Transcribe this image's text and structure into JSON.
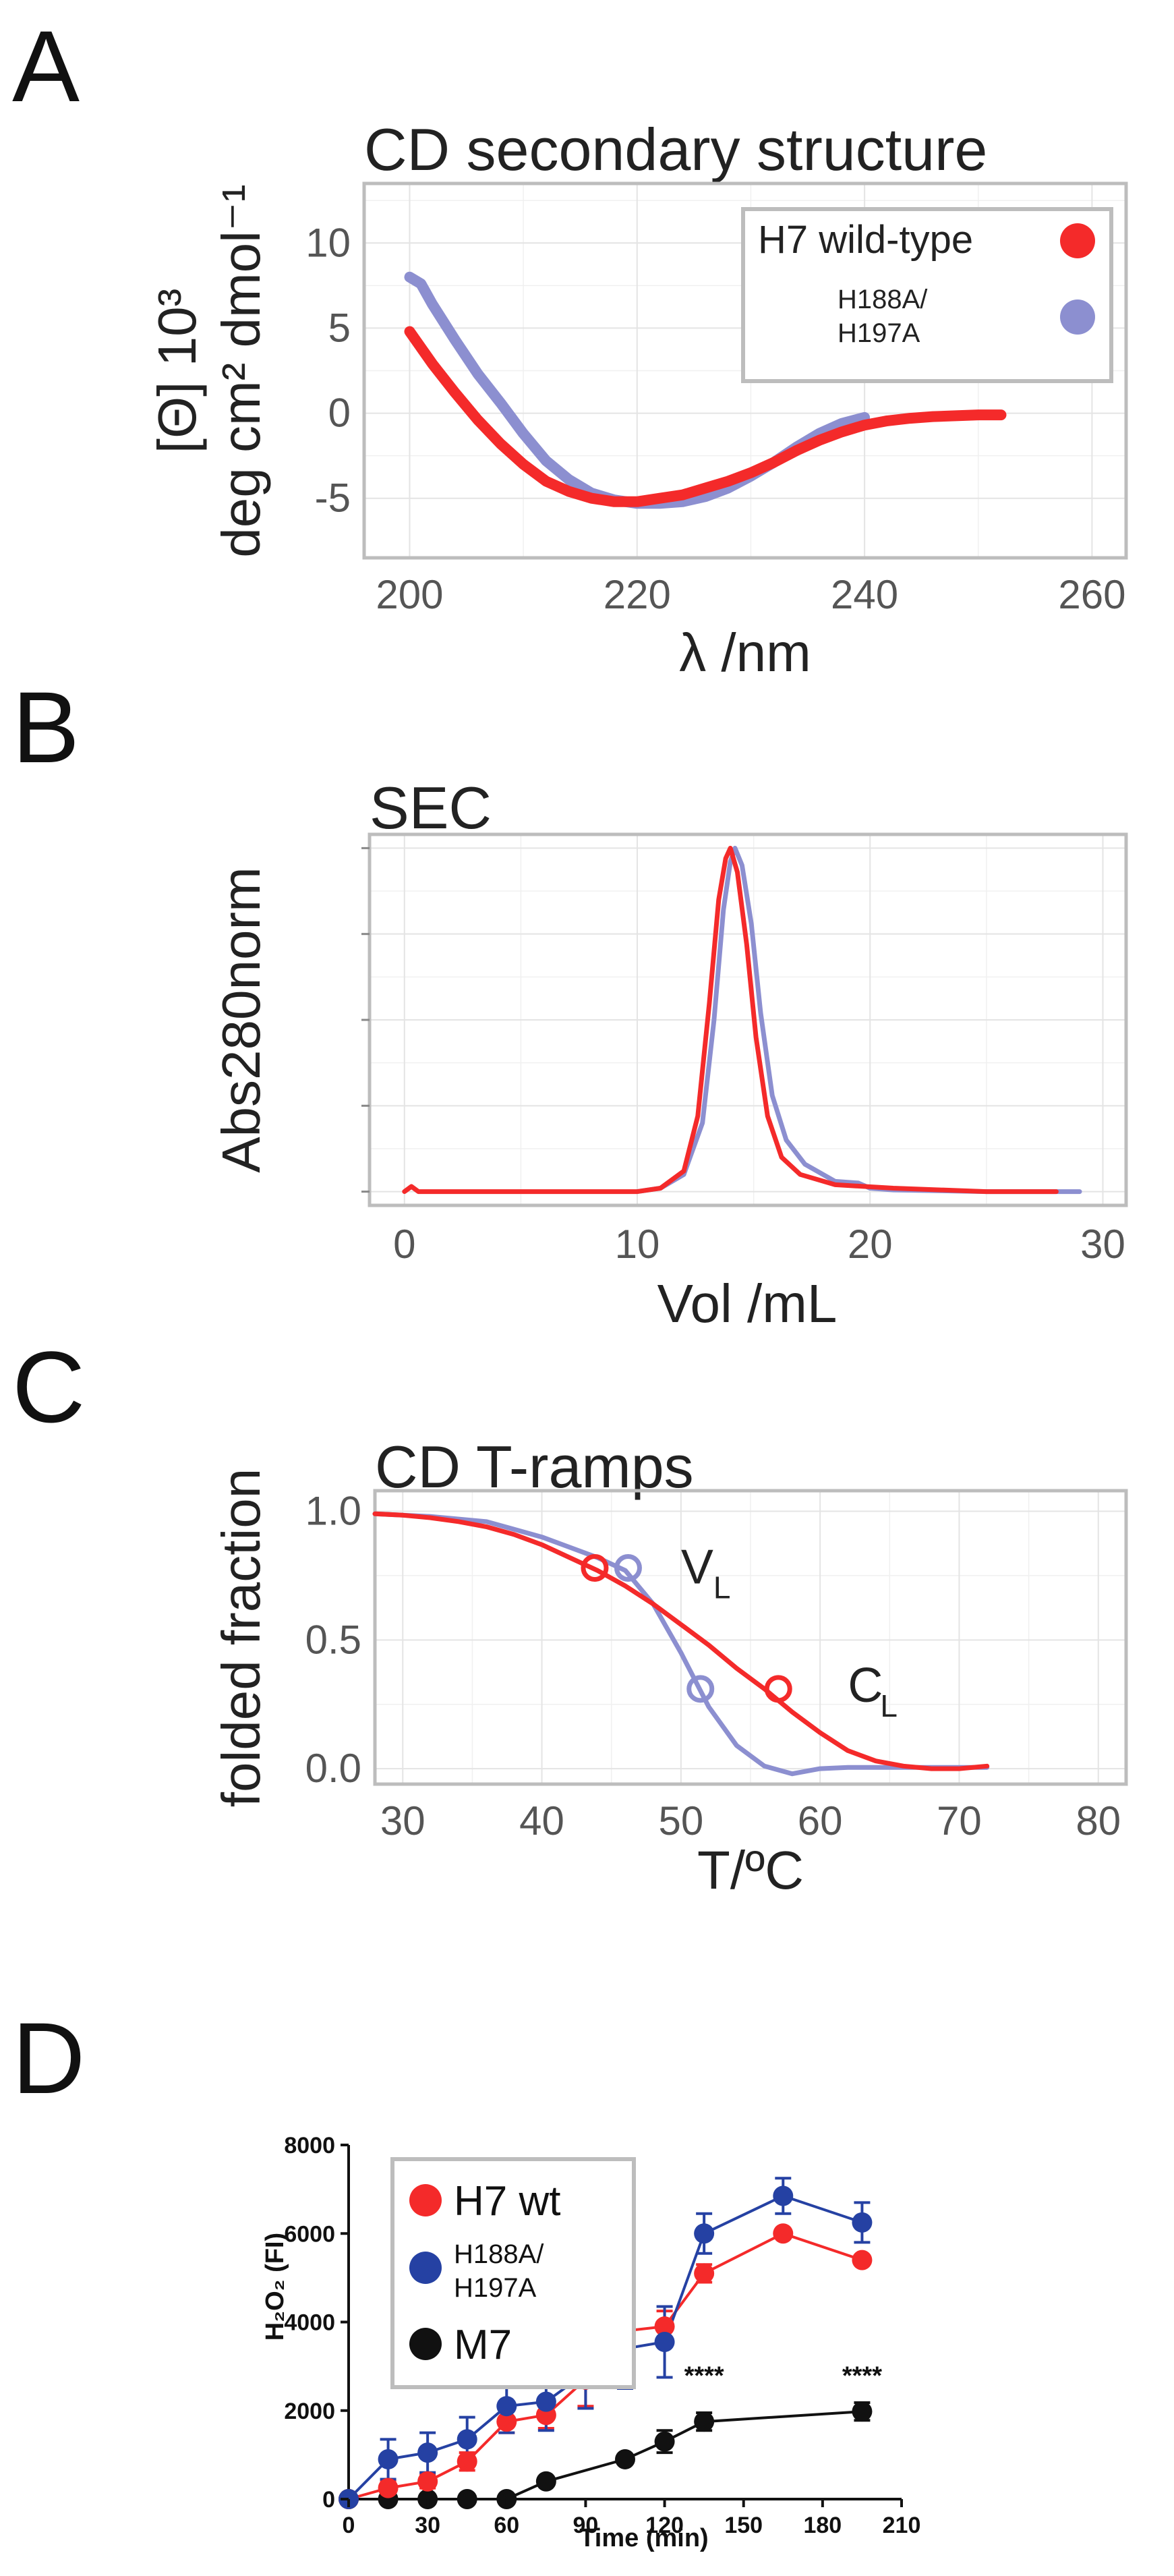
{
  "panels": {
    "a": "A",
    "b": "B",
    "c": "C",
    "d": "D"
  },
  "chart_data": [
    {
      "type": "line",
      "title": "CD secondary structure",
      "xlabel": "λ /nm",
      "ylabel_line1": "[Θ] 10³",
      "ylabel_line2": "deg cm² dmol⁻¹",
      "xlim": [
        196,
        263
      ],
      "ylim": [
        -8.5,
        13.5
      ],
      "xticks": [
        200,
        220,
        240,
        260
      ],
      "yticks": [
        -5,
        0,
        5,
        10
      ],
      "legend": {
        "placement": "top-right",
        "entries": [
          {
            "text": "H7 wild-type",
            "color": "#f42a2a"
          },
          {
            "text_line1": "H188A/",
            "text_line2": "H197A",
            "color": "#8c8fd0"
          }
        ]
      },
      "series": [
        {
          "name": "H7 wild-type",
          "color": "#f42a2a",
          "x": [
            200,
            202,
            204,
            206,
            208,
            210,
            212,
            214,
            216,
            218,
            220,
            222,
            224,
            226,
            228,
            230,
            232,
            234,
            236,
            238,
            240,
            242,
            244,
            246,
            248,
            250,
            252
          ],
          "y": [
            4.8,
            2.9,
            1.2,
            -0.4,
            -1.8,
            -3.0,
            -4.0,
            -4.6,
            -5.0,
            -5.2,
            -5.2,
            -5.0,
            -4.8,
            -4.4,
            -4.0,
            -3.5,
            -2.9,
            -2.2,
            -1.6,
            -1.1,
            -0.7,
            -0.45,
            -0.3,
            -0.2,
            -0.15,
            -0.1,
            -0.1
          ]
        },
        {
          "name": "H188A/H197A",
          "color": "#8c8fd0",
          "x": [
            200,
            201,
            202,
            204,
            206,
            208,
            210,
            212,
            214,
            216,
            218,
            220,
            222,
            224,
            226,
            228,
            230,
            232,
            234,
            236,
            238,
            240
          ],
          "y": [
            8.0,
            7.6,
            6.4,
            4.3,
            2.3,
            0.6,
            -1.2,
            -2.8,
            -3.9,
            -4.7,
            -5.1,
            -5.3,
            -5.3,
            -5.2,
            -4.9,
            -4.4,
            -3.7,
            -2.9,
            -2.0,
            -1.2,
            -0.6,
            -0.25
          ]
        }
      ]
    },
    {
      "type": "line",
      "title": "SEC",
      "xlabel": "Vol /mL",
      "ylabel": "Abs280norm",
      "xlim": [
        -1.5,
        31
      ],
      "ylim": [
        -0.04,
        1.04
      ],
      "xticks": [
        0,
        10,
        20,
        30
      ],
      "series": [
        {
          "name": "H7 wild-type",
          "color": "#f42a2a",
          "x": [
            0,
            0.3,
            0.6,
            2,
            8,
            10,
            11,
            12,
            12.6,
            13.1,
            13.5,
            13.8,
            14.0,
            14.3,
            14.7,
            15.1,
            15.6,
            16.2,
            17,
            18.5,
            21,
            25,
            28
          ],
          "y": [
            0.0,
            0.015,
            0.0,
            0.0,
            0.0,
            0.0,
            0.01,
            0.06,
            0.22,
            0.55,
            0.85,
            0.97,
            1.0,
            0.93,
            0.72,
            0.45,
            0.22,
            0.1,
            0.05,
            0.02,
            0.01,
            0.0,
            0.0
          ]
        },
        {
          "name": "H188A/H197A",
          "color": "#8c8fd0",
          "x": [
            10,
            11,
            12,
            12.8,
            13.3,
            13.7,
            14.0,
            14.2,
            14.5,
            14.9,
            15.3,
            15.8,
            16.4,
            17.2,
            18.5,
            19.5,
            20,
            21,
            25,
            29
          ],
          "y": [
            0.0,
            0.01,
            0.05,
            0.2,
            0.5,
            0.82,
            0.96,
            1.0,
            0.95,
            0.78,
            0.52,
            0.28,
            0.15,
            0.08,
            0.03,
            0.025,
            0.01,
            0.005,
            0.0,
            0.0
          ]
        }
      ]
    },
    {
      "type": "line",
      "title": "CD T-ramps",
      "xlabel": "T/ºC",
      "ylabel": "folded fraction",
      "xlim": [
        28,
        82
      ],
      "ylim": [
        -0.06,
        1.08
      ],
      "xticks": [
        30,
        40,
        50,
        60,
        70,
        80
      ],
      "yticks": [
        0.0,
        0.5,
        1.0
      ],
      "annotations": [
        {
          "main": "V",
          "sub": "L",
          "x": 50.0,
          "y": 0.72
        },
        {
          "main": "C",
          "sub": "L",
          "x": 62.0,
          "y": 0.26
        }
      ],
      "markers": [
        {
          "series": "H7 wild-type",
          "x": [
            43.8,
            57.0
          ],
          "y": [
            0.78,
            0.31
          ]
        },
        {
          "series": "H188A/H197A",
          "x": [
            46.2,
            51.4
          ],
          "y": [
            0.78,
            0.31
          ]
        }
      ],
      "series": [
        {
          "name": "H7 wild-type",
          "color": "#f42a2a",
          "x": [
            28,
            30,
            32,
            34,
            36,
            38,
            40,
            42,
            44,
            46,
            48,
            50,
            52,
            54,
            56,
            58,
            60,
            62,
            64,
            66,
            68,
            70,
            72
          ],
          "y": [
            0.99,
            0.985,
            0.975,
            0.96,
            0.94,
            0.91,
            0.87,
            0.82,
            0.77,
            0.71,
            0.64,
            0.56,
            0.48,
            0.39,
            0.31,
            0.22,
            0.14,
            0.07,
            0.03,
            0.01,
            0.0,
            0.0,
            0.01
          ]
        },
        {
          "name": "H188A/H197A",
          "color": "#8c8fd0",
          "x": [
            28,
            32,
            36,
            40,
            42,
            44,
            46,
            48,
            50,
            52,
            54,
            56,
            58,
            60,
            62,
            64,
            66,
            68,
            70,
            72
          ],
          "y": [
            0.99,
            0.98,
            0.96,
            0.9,
            0.86,
            0.82,
            0.77,
            0.64,
            0.45,
            0.24,
            0.09,
            0.01,
            -0.02,
            0.0,
            0.005,
            0.005,
            0.005,
            0.005,
            0.005,
            0.005
          ]
        }
      ]
    },
    {
      "type": "line",
      "ylabel": "H₂O₂ (FI)",
      "xlabel": "Time (min)",
      "xlim": [
        0,
        210
      ],
      "ylim": [
        0,
        8000
      ],
      "xticks": [
        0,
        30,
        60,
        90,
        120,
        150,
        180,
        210
      ],
      "yticks": [
        0,
        2000,
        4000,
        6000,
        8000
      ],
      "significance": [
        {
          "x": 135,
          "label": "****"
        },
        {
          "x": 195,
          "label": "****"
        }
      ],
      "legend": {
        "placement": "top-left",
        "entries": [
          {
            "text": "H7 wt",
            "color": "#f42a2a"
          },
          {
            "text_line1": "H188A/",
            "text_line2": "H197A",
            "color": "#2541a3"
          },
          {
            "text": "M7",
            "color": "#111111"
          }
        ]
      },
      "series": [
        {
          "name": "H7 wt",
          "color": "#f42a2a",
          "x": [
            0,
            15,
            30,
            45,
            60,
            75,
            90,
            105,
            120,
            135,
            165,
            195
          ],
          "y": [
            0,
            250,
            400,
            850,
            1750,
            1900,
            2700,
            3800,
            3900,
            5100,
            6000,
            5400
          ],
          "err": [
            0,
            150,
            150,
            200,
            250,
            300,
            600,
            450,
            350,
            200,
            100,
            100
          ]
        },
        {
          "name": "H188A/H197A",
          "color": "#2541a3",
          "x": [
            0,
            15,
            30,
            45,
            60,
            75,
            90,
            105,
            120,
            135,
            165,
            195
          ],
          "y": [
            0,
            900,
            1050,
            1350,
            2100,
            2200,
            2850,
            3400,
            3550,
            6000,
            6850,
            6250
          ],
          "err": [
            0,
            450,
            450,
            500,
            600,
            650,
            800,
            900,
            800,
            450,
            400,
            450
          ]
        },
        {
          "name": "M7",
          "color": "#111111",
          "x": [
            0,
            15,
            30,
            45,
            60,
            75,
            105,
            120,
            135,
            195
          ],
          "y": [
            0,
            0,
            0,
            0,
            0,
            400,
            900,
            1300,
            1750,
            1980
          ],
          "err": [
            0,
            0,
            0,
            0,
            0,
            60,
            80,
            250,
            200,
            200
          ]
        }
      ]
    }
  ]
}
